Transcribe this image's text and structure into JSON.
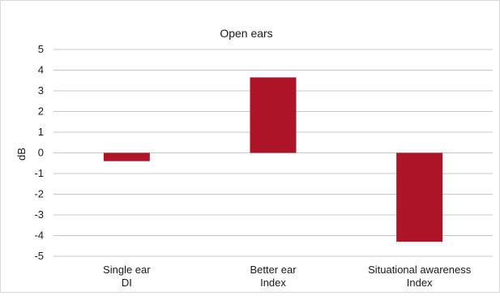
{
  "chart_data": {
    "type": "bar",
    "title": "Open ears",
    "ylabel": "dB",
    "xlabel": "",
    "categories": [
      [
        "Single ear",
        "DI"
      ],
      [
        "Better ear",
        "Index"
      ],
      [
        "Situational awareness",
        "Index"
      ]
    ],
    "values": [
      -0.4,
      3.65,
      -4.3
    ],
    "ylim": [
      -5,
      5
    ],
    "yticks": [
      "5",
      "4",
      "3",
      "2",
      "1",
      "0",
      "-1",
      "-2",
      "-3",
      "-4",
      "-5"
    ],
    "grid": true,
    "legend": "none",
    "colors": {
      "bar": "#ad1428",
      "grid": "#c8c8c8",
      "text": "#1a1a1a"
    }
  }
}
